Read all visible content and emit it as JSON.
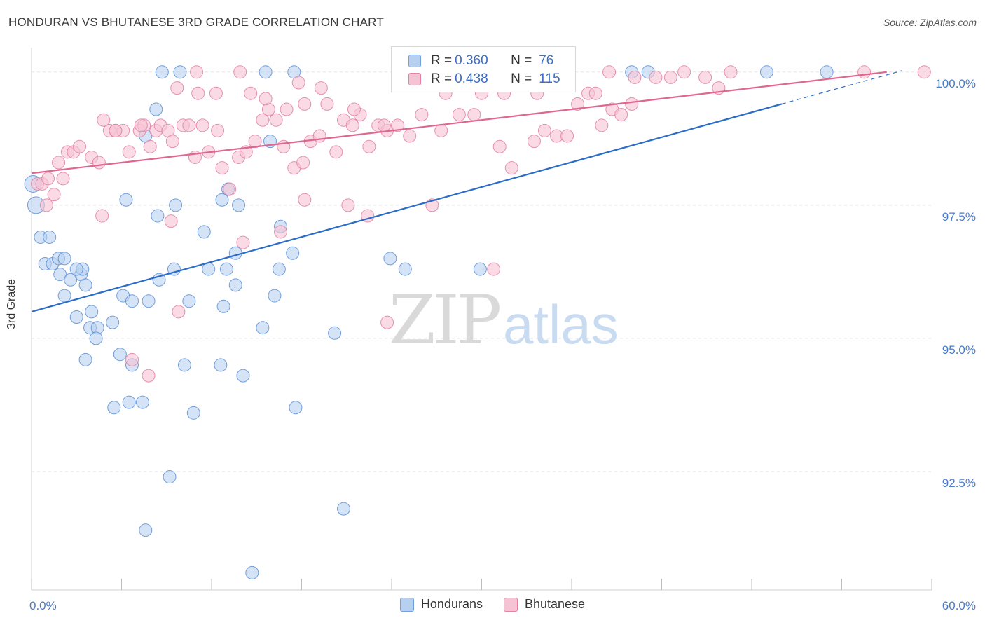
{
  "header": {
    "title": "HONDURAN VS BHUTANESE 3RD GRADE CORRELATION CHART",
    "source": "Source: ZipAtlas.com"
  },
  "watermark": {
    "zip": "ZIP",
    "atlas": "atlas"
  },
  "legend": {
    "rows": [
      {
        "r_label": "R = ",
        "r_value": "0.360",
        "n_label": "N = ",
        "n_value": "76",
        "color": "#6fa0e0",
        "fill": "#b8d0f0"
      },
      {
        "r_label": "R = ",
        "r_value": "0.438",
        "n_label": "N = ",
        "n_value": "115",
        "color": "#e87ea4",
        "fill": "#f6c3d4"
      }
    ]
  },
  "chart_data": {
    "type": "scatter",
    "title": "HONDURAN VS BHUTANESE 3RD GRADE CORRELATION CHART",
    "xlabel": "",
    "ylabel": "3rd Grade",
    "xlim": [
      0,
      60
    ],
    "ylim": [
      90.5,
      100.3
    ],
    "x_tick_labels": [
      "0.0%",
      "60.0%"
    ],
    "y_ticks": [
      92.5,
      95.0,
      97.5,
      100.0
    ],
    "y_tick_labels": [
      "92.5%",
      "95.0%",
      "97.5%",
      "100.0%"
    ],
    "grid": true,
    "legend_position": "top-center",
    "series": [
      {
        "name": "Hondurans",
        "color": "#5b8fd6",
        "fill": "#b8d0f0",
        "trend": {
          "x": [
            0,
            50
          ],
          "y": [
            95.5,
            99.4
          ],
          "extend_to_x": 58,
          "color": "#2a6cc8"
        },
        "points": [
          [
            0.1,
            97.9
          ],
          [
            0.3,
            97.5
          ],
          [
            0.6,
            96.9
          ],
          [
            1.2,
            96.9
          ],
          [
            0.9,
            96.4
          ],
          [
            1.4,
            96.4
          ],
          [
            1.8,
            96.5
          ],
          [
            2.2,
            96.5
          ],
          [
            1.9,
            96.2
          ],
          [
            2.6,
            96.1
          ],
          [
            3.3,
            96.2
          ],
          [
            3.4,
            96.3
          ],
          [
            3.6,
            96.0
          ],
          [
            3.0,
            96.3
          ],
          [
            2.2,
            95.8
          ],
          [
            3.0,
            95.4
          ],
          [
            4.0,
            95.5
          ],
          [
            3.9,
            95.2
          ],
          [
            4.4,
            95.2
          ],
          [
            5.4,
            95.3
          ],
          [
            4.3,
            95.0
          ],
          [
            6.1,
            95.8
          ],
          [
            6.7,
            95.7
          ],
          [
            7.8,
            95.7
          ],
          [
            5.9,
            94.7
          ],
          [
            3.6,
            94.6
          ],
          [
            6.7,
            94.5
          ],
          [
            8.5,
            96.1
          ],
          [
            9.5,
            96.3
          ],
          [
            11.8,
            96.3
          ],
          [
            13.0,
            96.3
          ],
          [
            13.6,
            96.0
          ],
          [
            10.5,
            95.7
          ],
          [
            12.8,
            95.6
          ],
          [
            15.4,
            95.2
          ],
          [
            16.2,
            95.8
          ],
          [
            17.4,
            96.6
          ],
          [
            16.5,
            96.3
          ],
          [
            13.6,
            96.6
          ],
          [
            16.6,
            97.1
          ],
          [
            11.5,
            97.0
          ],
          [
            12.7,
            97.6
          ],
          [
            13.1,
            97.8
          ],
          [
            13.8,
            97.5
          ],
          [
            8.4,
            97.3
          ],
          [
            9.6,
            97.5
          ],
          [
            6.3,
            97.6
          ],
          [
            10.2,
            94.5
          ],
          [
            12.6,
            94.5
          ],
          [
            14.1,
            94.3
          ],
          [
            5.5,
            93.7
          ],
          [
            6.5,
            93.8
          ],
          [
            7.4,
            93.8
          ],
          [
            10.8,
            93.6
          ],
          [
            17.6,
            93.7
          ],
          [
            20.2,
            95.1
          ],
          [
            23.9,
            96.5
          ],
          [
            24.9,
            96.3
          ],
          [
            29.9,
            96.3
          ],
          [
            9.2,
            92.4
          ],
          [
            7.6,
            91.4
          ],
          [
            20.8,
            91.8
          ],
          [
            14.7,
            90.6
          ],
          [
            7.6,
            98.8
          ],
          [
            8.3,
            99.3
          ],
          [
            15.9,
            98.7
          ],
          [
            8.7,
            100.0
          ],
          [
            9.9,
            100.0
          ],
          [
            15.6,
            100.0
          ],
          [
            17.5,
            100.0
          ],
          [
            25.2,
            100.0
          ],
          [
            27.0,
            100.0
          ],
          [
            40.0,
            100.0
          ],
          [
            41.1,
            100.0
          ],
          [
            49.0,
            100.0
          ],
          [
            53.0,
            100.0
          ]
        ]
      },
      {
        "name": "Bhutanese",
        "color": "#e07fa2",
        "fill": "#f6c3d4",
        "trend": {
          "x": [
            0,
            57
          ],
          "y": [
            98.1,
            100.0
          ],
          "color": "#e0668f"
        },
        "points": [
          [
            0.4,
            97.9
          ],
          [
            0.7,
            97.9
          ],
          [
            1.1,
            98.0
          ],
          [
            2.1,
            98.0
          ],
          [
            1.5,
            97.7
          ],
          [
            1.0,
            97.5
          ],
          [
            1.8,
            98.3
          ],
          [
            2.4,
            98.5
          ],
          [
            2.8,
            98.5
          ],
          [
            3.2,
            98.6
          ],
          [
            4.0,
            98.4
          ],
          [
            4.5,
            98.3
          ],
          [
            5.2,
            98.9
          ],
          [
            5.6,
            98.9
          ],
          [
            6.1,
            98.9
          ],
          [
            6.5,
            98.5
          ],
          [
            7.2,
            98.9
          ],
          [
            7.5,
            99.0
          ],
          [
            7.9,
            98.6
          ],
          [
            8.3,
            98.9
          ],
          [
            8.6,
            99.0
          ],
          [
            9.1,
            98.9
          ],
          [
            9.4,
            98.7
          ],
          [
            10.1,
            99.0
          ],
          [
            10.5,
            99.0
          ],
          [
            10.9,
            98.4
          ],
          [
            11.4,
            99.0
          ],
          [
            11.8,
            98.5
          ],
          [
            12.4,
            98.9
          ],
          [
            12.7,
            98.2
          ],
          [
            13.2,
            97.8
          ],
          [
            13.8,
            98.4
          ],
          [
            14.3,
            98.5
          ],
          [
            14.9,
            98.7
          ],
          [
            15.4,
            99.1
          ],
          [
            15.8,
            99.3
          ],
          [
            16.3,
            99.1
          ],
          [
            16.8,
            98.6
          ],
          [
            17.5,
            98.2
          ],
          [
            18.1,
            98.3
          ],
          [
            18.6,
            98.7
          ],
          [
            19.2,
            98.8
          ],
          [
            19.7,
            99.4
          ],
          [
            20.3,
            98.5
          ],
          [
            20.8,
            99.1
          ],
          [
            21.4,
            99.0
          ],
          [
            21.9,
            99.2
          ],
          [
            22.5,
            98.6
          ],
          [
            23.1,
            99.0
          ],
          [
            23.7,
            98.9
          ],
          [
            24.4,
            99.0
          ],
          [
            25.2,
            98.8
          ],
          [
            26.0,
            99.2
          ],
          [
            27.3,
            98.9
          ],
          [
            28.5,
            99.2
          ],
          [
            30.0,
            99.6
          ],
          [
            31.2,
            98.6
          ],
          [
            32.0,
            98.2
          ],
          [
            33.5,
            98.7
          ],
          [
            34.2,
            98.9
          ],
          [
            35.0,
            98.8
          ],
          [
            35.7,
            98.8
          ],
          [
            36.4,
            99.4
          ],
          [
            37.1,
            99.6
          ],
          [
            38.0,
            99.0
          ],
          [
            38.7,
            99.3
          ],
          [
            39.3,
            99.2
          ],
          [
            40.0,
            99.4
          ],
          [
            4.8,
            99.1
          ],
          [
            5.6,
            98.9
          ],
          [
            7.3,
            99.0
          ],
          [
            9.7,
            99.7
          ],
          [
            11.1,
            99.6
          ],
          [
            12.3,
            99.6
          ],
          [
            14.6,
            99.6
          ],
          [
            15.6,
            99.5
          ],
          [
            17.0,
            99.3
          ],
          [
            18.2,
            99.4
          ],
          [
            19.3,
            99.7
          ],
          [
            21.5,
            99.3
          ],
          [
            23.5,
            99.0
          ],
          [
            25.4,
            99.9
          ],
          [
            27.6,
            99.6
          ],
          [
            29.5,
            99.2
          ],
          [
            31.5,
            99.6
          ],
          [
            33.7,
            99.6
          ],
          [
            35.5,
            99.9
          ],
          [
            37.6,
            99.6
          ],
          [
            40.2,
            99.9
          ],
          [
            41.6,
            99.9
          ],
          [
            42.6,
            99.9
          ],
          [
            44.9,
            99.9
          ],
          [
            45.8,
            99.7
          ],
          [
            46.6,
            100.0
          ],
          [
            43.5,
            100.0
          ],
          [
            38.5,
            100.0
          ],
          [
            33.8,
            100.0
          ],
          [
            28.9,
            100.0
          ],
          [
            25.8,
            100.0
          ],
          [
            17.8,
            99.8
          ],
          [
            13.9,
            100.0
          ],
          [
            11.0,
            100.0
          ],
          [
            55.5,
            100.0
          ],
          [
            59.5,
            100.0
          ],
          [
            9.3,
            97.2
          ],
          [
            4.7,
            97.3
          ],
          [
            14.1,
            96.8
          ],
          [
            16.6,
            97.0
          ],
          [
            21.1,
            97.5
          ],
          [
            22.4,
            97.3
          ],
          [
            26.7,
            97.5
          ],
          [
            30.8,
            96.3
          ],
          [
            9.8,
            95.5
          ],
          [
            23.7,
            95.3
          ],
          [
            6.7,
            94.6
          ],
          [
            7.8,
            94.3
          ],
          [
            18.2,
            97.6
          ]
        ]
      }
    ]
  },
  "bottom_legend": [
    {
      "label": "Hondurans"
    },
    {
      "label": "Bhutanese"
    }
  ]
}
